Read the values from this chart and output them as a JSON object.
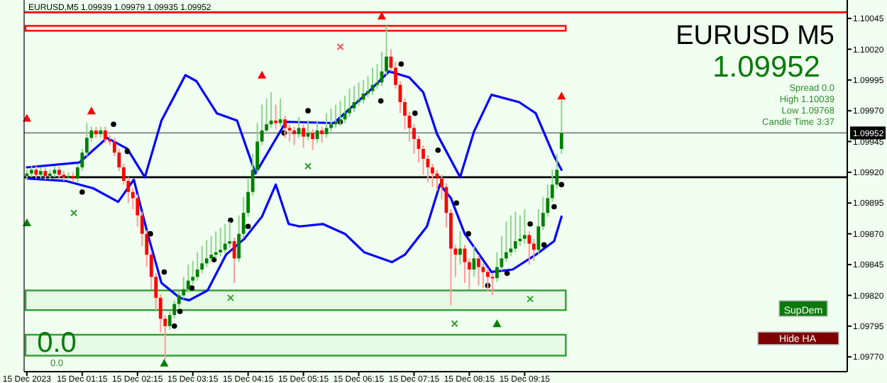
{
  "chart_data": {
    "type": "candlestick",
    "title": "EURUSD,M5  1.09939 1.09979 1.09935 1.09952",
    "annotations": [
      "EURUSD M5",
      "1.09952",
      "Spread 0.0",
      "High 1.10039",
      "Low 1.09768",
      "Candle Time 3:37",
      "0.0",
      "0.0",
      "SupDem",
      "Hide HA"
    ],
    "xlim": [
      "2023-12-15T00:12",
      "2023-12-15T15:05"
    ],
    "ylim": [
      1.09758,
      1.1006
    ],
    "xticks": [
      {
        "value": "2023-12-15T00:15",
        "label": "15 Dec 2023"
      },
      {
        "value": "2023-12-15T01:15",
        "label": "15 Dec 01:15"
      },
      {
        "value": "2023-12-15T02:15",
        "label": "15 Dec 02:15"
      },
      {
        "value": "2023-12-15T03:15",
        "label": "15 Dec 03:15"
      },
      {
        "value": "2023-12-15T04:15",
        "label": "15 Dec 04:15"
      },
      {
        "value": "2023-12-15T05:15",
        "label": "15 Dec 05:15"
      },
      {
        "value": "2023-12-15T06:15",
        "label": "15 Dec 06:15"
      },
      {
        "value": "2023-12-15T07:15",
        "label": "15 Dec 07:15"
      },
      {
        "value": "2023-12-15T08:15",
        "label": "15 Dec 08:15"
      },
      {
        "value": "2023-12-15T09:15",
        "label": "15 Dec 09:15"
      }
    ],
    "yticks": [
      1.10045,
      {
        "value": 1.1002,
        "label": "1.10020"
      },
      1.09995,
      {
        "value": 1.0997,
        "label": "1.09970"
      },
      1.09945,
      {
        "value": 1.0992,
        "label": "1.09920"
      },
      1.09895,
      {
        "value": 1.0987,
        "label": "1.09870"
      },
      1.09845,
      {
        "value": 1.0982,
        "label": "1.09820"
      },
      1.09795,
      {
        "value": 1.0977,
        "label": "1.09770"
      }
    ],
    "x": [
      "2023-12-15T00:15",
      "2023-12-15T00:20",
      "2023-12-15T00:25",
      "2023-12-15T00:30",
      "2023-12-15T00:35",
      "2023-12-15T00:40",
      "2023-12-15T00:45",
      "2023-12-15T00:50",
      "2023-12-15T00:55",
      "2023-12-15T01:00",
      "2023-12-15T01:05",
      "2023-12-15T01:10",
      "2023-12-15T01:15",
      "2023-12-15T01:20",
      "2023-12-15T01:25",
      "2023-12-15T01:30",
      "2023-12-15T01:35",
      "2023-12-15T01:40",
      "2023-12-15T01:45",
      "2023-12-15T01:50",
      "2023-12-15T01:55",
      "2023-12-15T02:00",
      "2023-12-15T02:05",
      "2023-12-15T02:10",
      "2023-12-15T02:15",
      "2023-12-15T02:20",
      "2023-12-15T02:25",
      "2023-12-15T02:30",
      "2023-12-15T02:35",
      "2023-12-15T02:40",
      "2023-12-15T02:45",
      "2023-12-15T02:50",
      "2023-12-15T02:55",
      "2023-12-15T03:00",
      "2023-12-15T03:05",
      "2023-12-15T03:10",
      "2023-12-15T03:15",
      "2023-12-15T03:20",
      "2023-12-15T03:25",
      "2023-12-15T03:30",
      "2023-12-15T03:35",
      "2023-12-15T03:40",
      "2023-12-15T03:45",
      "2023-12-15T03:50",
      "2023-12-15T03:55",
      "2023-12-15T04:00",
      "2023-12-15T04:05",
      "2023-12-15T04:10",
      "2023-12-15T04:15",
      "2023-12-15T04:20",
      "2023-12-15T04:25",
      "2023-12-15T04:30",
      "2023-12-15T04:35",
      "2023-12-15T04:40",
      "2023-12-15T04:45",
      "2023-12-15T04:50",
      "2023-12-15T04:55",
      "2023-12-15T05:00",
      "2023-12-15T05:05",
      "2023-12-15T05:10",
      "2023-12-15T05:15",
      "2023-12-15T05:20",
      "2023-12-15T05:25",
      "2023-12-15T05:30",
      "2023-12-15T05:35",
      "2023-12-15T05:40",
      "2023-12-15T05:45",
      "2023-12-15T05:50",
      "2023-12-15T05:55",
      "2023-12-15T06:00",
      "2023-12-15T06:05",
      "2023-12-15T06:10",
      "2023-12-15T06:15",
      "2023-12-15T06:20",
      "2023-12-15T06:25",
      "2023-12-15T06:30",
      "2023-12-15T06:35",
      "2023-12-15T06:40",
      "2023-12-15T06:45",
      "2023-12-15T06:50",
      "2023-12-15T06:55",
      "2023-12-15T07:00",
      "2023-12-15T07:05",
      "2023-12-15T07:10",
      "2023-12-15T07:15",
      "2023-12-15T07:20",
      "2023-12-15T07:25",
      "2023-12-15T07:30",
      "2023-12-15T07:35",
      "2023-12-15T07:40",
      "2023-12-15T07:45",
      "2023-12-15T07:50",
      "2023-12-15T07:55",
      "2023-12-15T08:00",
      "2023-12-15T08:05",
      "2023-12-15T08:10",
      "2023-12-15T08:15",
      "2023-12-15T08:20",
      "2023-12-15T08:25",
      "2023-12-15T08:30",
      "2023-12-15T08:35",
      "2023-12-15T08:40",
      "2023-12-15T08:45",
      "2023-12-15T08:50",
      "2023-12-15T08:55",
      "2023-12-15T09:00",
      "2023-12-15T09:05",
      "2023-12-15T09:10",
      "2023-12-15T09:15",
      "2023-12-15T09:20",
      "2023-12-15T09:25",
      "2023-12-15T09:30",
      "2023-12-15T09:35",
      "2023-12-15T09:40",
      "2023-12-15T09:45",
      "2023-12-15T09:50",
      "2023-12-15T09:55"
    ],
    "ohlc": [
      [
        1.09917,
        1.09922,
        1.09914,
        1.09919
      ],
      [
        1.09919,
        1.09925,
        1.09916,
        1.09922
      ],
      [
        1.09922,
        1.09925,
        1.09915,
        1.09918
      ],
      [
        1.09918,
        1.09924,
        1.09915,
        1.09921
      ],
      [
        1.09921,
        1.09924,
        1.09914,
        1.09917
      ],
      [
        1.09917,
        1.09922,
        1.09914,
        1.09919
      ],
      [
        1.09919,
        1.09925,
        1.09916,
        1.09922
      ],
      [
        1.09922,
        1.09925,
        1.09915,
        1.09918
      ],
      [
        1.09918,
        1.09921,
        1.09913,
        1.09916
      ],
      [
        1.09916,
        1.0992,
        1.09913,
        1.09917
      ],
      [
        1.09917,
        1.0992,
        1.09912,
        1.09915
      ],
      [
        1.09915,
        1.09927,
        1.09912,
        1.09924
      ],
      [
        1.09924,
        1.09939,
        1.09921,
        1.09936
      ],
      [
        1.09936,
        1.0996,
        1.09933,
        1.09948
      ],
      [
        1.09948,
        1.09957,
        1.09945,
        1.09954
      ],
      [
        1.09954,
        1.09957,
        1.09948,
        1.09951
      ],
      [
        1.09951,
        1.09957,
        1.09948,
        1.09954
      ],
      [
        1.09954,
        1.09957,
        1.09944,
        1.09947
      ],
      [
        1.09947,
        1.0995,
        1.09942,
        1.09945
      ],
      [
        1.09945,
        1.09948,
        1.09933,
        1.09936
      ],
      [
        1.09936,
        1.09939,
        1.09921,
        1.09924
      ],
      [
        1.09924,
        1.09927,
        1.0991,
        1.09913
      ],
      [
        1.09913,
        1.09916,
        1.09895,
        1.09904
      ],
      [
        1.09904,
        1.09907,
        1.0989,
        1.09899
      ],
      [
        1.09899,
        1.09902,
        1.09876,
        1.09885
      ],
      [
        1.09885,
        1.09888,
        1.0986,
        1.0987
      ],
      [
        1.0987,
        1.09873,
        1.09843,
        1.09853
      ],
      [
        1.09853,
        1.09856,
        1.09825,
        1.09835
      ],
      [
        1.09835,
        1.09838,
        1.09808,
        1.09818
      ],
      [
        1.09818,
        1.09821,
        1.0979,
        1.09801
      ],
      [
        1.09801,
        1.09804,
        1.09768,
        1.09795
      ],
      [
        1.09795,
        1.09807,
        1.09792,
        1.09804
      ],
      [
        1.09804,
        1.09816,
        1.09801,
        1.09813
      ],
      [
        1.09813,
        1.09823,
        1.0981,
        1.0982
      ],
      [
        1.0982,
        1.09835,
        1.09817,
        1.09825
      ],
      [
        1.09825,
        1.09845,
        1.09822,
        1.09832
      ],
      [
        1.09832,
        1.09848,
        1.09829,
        1.09835
      ],
      [
        1.09835,
        1.09855,
        1.09832,
        1.09841
      ],
      [
        1.09841,
        1.0986,
        1.09838,
        1.09846
      ],
      [
        1.09846,
        1.09865,
        1.09843,
        1.0985
      ],
      [
        1.0985,
        1.09868,
        1.09847,
        1.09853
      ],
      [
        1.09853,
        1.09872,
        1.0985,
        1.09855
      ],
      [
        1.09855,
        1.09875,
        1.09852,
        1.09857
      ],
      [
        1.09857,
        1.09878,
        1.09854,
        1.09862
      ],
      [
        1.09862,
        1.0988,
        1.09859,
        1.09864
      ],
      [
        1.09864,
        1.09867,
        1.0983,
        1.0985
      ],
      [
        1.0985,
        1.09885,
        1.09847,
        1.0987
      ],
      [
        1.0987,
        1.099,
        1.09867,
        1.09887
      ],
      [
        1.09887,
        1.09915,
        1.09884,
        1.09904
      ],
      [
        1.09904,
        1.09935,
        1.09901,
        1.09922
      ],
      [
        1.09922,
        1.0996,
        1.09919,
        1.09945
      ],
      [
        1.09945,
        1.09975,
        1.09942,
        1.09954
      ],
      [
        1.09954,
        1.0998,
        1.09951,
        1.09959
      ],
      [
        1.09959,
        1.09985,
        1.09956,
        1.09962
      ],
      [
        1.09962,
        1.09975,
        1.09955,
        1.0996
      ],
      [
        1.0996,
        1.0998,
        1.09957,
        1.09963
      ],
      [
        1.09963,
        1.09966,
        1.09948,
        1.09956
      ],
      [
        1.09956,
        1.09959,
        1.09945,
        1.09954
      ],
      [
        1.09954,
        1.09957,
        1.09942,
        1.09951
      ],
      [
        1.09951,
        1.09965,
        1.09948,
        1.09956
      ],
      [
        1.09956,
        1.09959,
        1.0994,
        1.09949
      ],
      [
        1.09949,
        1.09962,
        1.09946,
        1.09952
      ],
      [
        1.09952,
        1.09955,
        1.09938,
        1.09947
      ],
      [
        1.09947,
        1.09962,
        1.09944,
        1.09954
      ],
      [
        1.09954,
        1.09957,
        1.09944,
        1.09951
      ],
      [
        1.09951,
        1.09968,
        1.09948,
        1.09956
      ],
      [
        1.09956,
        1.09972,
        1.09953,
        1.09959
      ],
      [
        1.09959,
        1.09975,
        1.09956,
        1.09961
      ],
      [
        1.09961,
        1.09978,
        1.09958,
        1.09963
      ],
      [
        1.09963,
        1.09982,
        1.0996,
        1.09968
      ],
      [
        1.09968,
        1.09988,
        1.09965,
        1.09972
      ],
      [
        1.09972,
        1.0999,
        1.09969,
        1.09977
      ],
      [
        1.09977,
        1.09993,
        1.09974,
        1.09979
      ],
      [
        1.09979,
        1.09995,
        1.09976,
        1.09984
      ],
      [
        1.09984,
        1.09998,
        1.09981,
        1.09986
      ],
      [
        1.09986,
        1.10005,
        1.09983,
        1.09991
      ],
      [
        1.09991,
        1.10008,
        1.09988,
        1.09993
      ],
      [
        1.09993,
        1.10018,
        1.0999,
        1.10002
      ],
      [
        1.10002,
        1.10039,
        1.09999,
        1.10014
      ],
      [
        1.10014,
        1.1002,
        1.10002,
        1.10005
      ],
      [
        1.10005,
        1.1001,
        1.09988,
        1.09991
      ],
      [
        1.09991,
        1.09994,
        1.09968,
        1.09977
      ],
      [
        1.09977,
        1.0998,
        1.09955,
        1.09966
      ],
      [
        1.09966,
        1.09969,
        1.09945,
        1.09956
      ],
      [
        1.09956,
        1.09959,
        1.09935,
        1.09947
      ],
      [
        1.09947,
        1.0995,
        1.09928,
        1.09939
      ],
      [
        1.09939,
        1.09942,
        1.09918,
        1.09931
      ],
      [
        1.09931,
        1.09934,
        1.09912,
        1.09924
      ],
      [
        1.09924,
        1.09927,
        1.09908,
        1.09919
      ],
      [
        1.09919,
        1.09922,
        1.09905,
        1.09915
      ],
      [
        1.09915,
        1.09918,
        1.09898,
        1.09908
      ],
      [
        1.09908,
        1.09911,
        1.09875,
        1.09887
      ],
      [
        1.09887,
        1.0989,
        1.09812,
        1.09858
      ],
      [
        1.09858,
        1.09861,
        1.09835,
        1.09853
      ],
      [
        1.09853,
        1.09872,
        1.09845,
        1.09858
      ],
      [
        1.09858,
        1.09861,
        1.0983,
        1.09847
      ],
      [
        1.09847,
        1.0985,
        1.09825,
        1.09841
      ],
      [
        1.09841,
        1.0986,
        1.09835,
        1.0985
      ],
      [
        1.0985,
        1.09853,
        1.09828,
        1.09843
      ],
      [
        1.09843,
        1.09846,
        1.09826,
        1.09839
      ],
      [
        1.09839,
        1.09842,
        1.09823,
        1.09835
      ],
      [
        1.09835,
        1.09838,
        1.0982,
        1.09834
      ],
      [
        1.09834,
        1.09855,
        1.09831,
        1.09843
      ],
      [
        1.09843,
        1.09868,
        1.0984,
        1.0985
      ],
      [
        1.0985,
        1.0988,
        1.09847,
        1.09855
      ],
      [
        1.09855,
        1.09885,
        1.09852,
        1.09858
      ],
      [
        1.09858,
        1.09888,
        1.09855,
        1.09864
      ],
      [
        1.09864,
        1.09885,
        1.0986,
        1.09866
      ],
      [
        1.09866,
        1.0989,
        1.09862,
        1.09869
      ],
      [
        1.09869,
        1.09872,
        1.09845,
        1.09862
      ],
      [
        1.09862,
        1.09866,
        1.09848,
        1.09857
      ],
      [
        1.09857,
        1.0989,
        1.09854,
        1.09876
      ],
      [
        1.09876,
        1.099,
        1.09873,
        1.09887
      ],
      [
        1.09887,
        1.0991,
        1.09884,
        1.09899
      ],
      [
        1.09899,
        1.09922,
        1.09896,
        1.0991
      ],
      [
        1.0991,
        1.09935,
        1.09907,
        1.09922
      ],
      [
        1.09939,
        1.09979,
        1.09935,
        1.09952
      ]
    ],
    "series": [
      {
        "type": "line",
        "color": "#0000ff",
        "x": [
          "2023-12-15T00:15",
          "2023-12-15T01:12",
          "2023-12-15T01:42",
          "2023-12-15T02:04",
          "2023-12-15T02:23",
          "2023-12-15T02:41",
          "2023-12-15T03:07",
          "2023-12-15T03:19",
          "2023-12-15T03:41",
          "2023-12-15T04:03",
          "2023-12-15T04:23",
          "2023-12-15T04:56",
          "2023-12-15T05:48",
          "2023-12-15T06:25",
          "2023-12-15T06:48",
          "2023-12-15T07:10",
          "2023-12-15T07:25",
          "2023-12-15T07:40",
          "2023-12-15T08:05",
          "2023-12-15T08:20",
          "2023-12-15T08:39",
          "2023-12-15T09:09",
          "2023-12-15T09:27",
          "2023-12-15T09:47",
          "2023-12-15T09:55"
        ],
        "values": [
          1.09924,
          1.09928,
          1.09948,
          1.09939,
          1.09916,
          1.09962,
          1.09999,
          1.09994,
          1.09968,
          1.09962,
          1.09919,
          1.09961,
          1.0996,
          1.09985,
          1.10002,
          1.09997,
          1.09985,
          1.09951,
          1.09916,
          1.09953,
          1.09983,
          1.09977,
          1.09968,
          1.09933,
          1.09922
        ]
      },
      {
        "type": "line",
        "color": "#0000ff",
        "x": [
          "2023-12-15T00:15",
          "2023-12-15T00:57",
          "2023-12-15T01:27",
          "2023-12-15T01:54",
          "2023-12-15T02:11",
          "2023-12-15T02:26",
          "2023-12-15T02:41",
          "2023-12-15T03:01",
          "2023-12-15T03:11",
          "2023-12-15T03:31",
          "2023-12-15T03:51",
          "2023-12-15T04:11",
          "2023-12-15T04:30",
          "2023-12-15T04:45",
          "2023-12-15T04:59",
          "2023-12-15T05:11",
          "2023-12-15T05:36",
          "2023-12-15T06:00",
          "2023-12-15T06:21",
          "2023-12-15T06:51",
          "2023-12-15T07:05",
          "2023-12-15T07:29",
          "2023-12-15T07:43",
          "2023-12-15T07:55",
          "2023-12-15T08:10",
          "2023-12-15T08:24",
          "2023-12-15T08:39",
          "2023-12-15T09:02",
          "2023-12-15T09:27",
          "2023-12-15T09:47",
          "2023-12-15T09:55"
        ],
        "values": [
          1.09915,
          1.09913,
          1.09907,
          1.09896,
          1.09914,
          1.0987,
          1.0983,
          1.09818,
          1.09816,
          1.09824,
          1.09853,
          1.09866,
          1.09884,
          1.0991,
          1.09878,
          1.09876,
          1.09878,
          1.0987,
          1.09855,
          1.09847,
          1.09853,
          1.09876,
          1.0991,
          1.09899,
          1.0987,
          1.09855,
          1.09839,
          1.09841,
          1.09853,
          1.09864,
          1.09884
        ]
      },
      {
        "type": "scatter",
        "marker": "circle",
        "color": "#000000",
        "x": [
          "2023-12-15T01:15",
          "2023-12-15T01:49",
          "2023-12-15T02:04",
          "2023-12-15T02:29",
          "2023-12-15T02:44",
          "2023-12-15T02:55",
          "2023-12-15T03:01",
          "2023-12-15T03:14",
          "2023-12-15T03:38",
          "2023-12-15T03:56",
          "2023-12-15T04:15",
          "2023-12-15T04:54",
          "2023-12-15T05:20",
          "2023-12-15T05:55",
          "2023-12-15T06:39",
          "2023-12-15T07:01",
          "2023-12-15T07:16",
          "2023-12-15T07:41",
          "2023-12-15T08:01",
          "2023-12-15T08:14",
          "2023-12-15T08:35",
          "2023-12-15T08:56",
          "2023-12-15T09:21",
          "2023-12-15T09:36",
          "2023-12-15T09:47",
          "2023-12-15T09:55"
        ],
        "values": [
          1.09904,
          1.09959,
          1.09937,
          1.0987,
          1.09839,
          1.09795,
          1.09807,
          1.09826,
          1.09849,
          1.09881,
          1.09876,
          1.09952,
          1.0997,
          1.09961,
          1.09978,
          1.10008,
          1.09968,
          1.09938,
          1.09895,
          1.0987,
          1.09828,
          1.09838,
          1.09878,
          1.09861,
          1.09892,
          1.0991
        ]
      },
      {
        "type": "scatter",
        "marker": "triangle",
        "color": "#ff0000",
        "x": [
          "2023-12-15T00:15",
          "2023-12-15T01:25",
          "2023-12-15T04:30",
          "2023-12-15T06:40",
          "2023-12-15T09:55"
        ],
        "values": [
          1.09964,
          1.0997,
          1.09999,
          1.10047,
          1.09982
        ]
      },
      {
        "type": "scatter",
        "marker": "triangle",
        "color": "#008000",
        "x": [
          "2023-12-15T00:15",
          "2023-12-15T02:44",
          "2023-12-15T08:45"
        ],
        "values": [
          1.09879,
          1.09765,
          1.09797
        ]
      },
      {
        "type": "scatter",
        "marker": "cross",
        "color": "#ff5050",
        "x": [
          "2023-12-15T05:55"
        ],
        "values": [
          1.10022
        ]
      },
      {
        "type": "scatter",
        "marker": "cross",
        "color": "#2e9e2e",
        "x": [
          "2023-12-15T01:06",
          "2023-12-15T03:56",
          "2023-12-15T05:20",
          "2023-12-15T07:59",
          "2023-12-15T09:21"
        ],
        "values": [
          1.09887,
          1.09818,
          1.09925,
          1.09797,
          1.09817
        ]
      }
    ],
    "ref_lines": [
      {
        "axis": "y",
        "value": 1.1005,
        "color": "#ff0000",
        "line_style": "solid"
      },
      {
        "axis": "y",
        "value": 1.09952,
        "label": "1.09952",
        "color": "#808080",
        "line_style": "solid"
      },
      {
        "axis": "y",
        "value": 1.09916,
        "color": "#000000",
        "line_style": "solid"
      }
    ],
    "bands": [
      {
        "axis": "y",
        "from": 1.10035,
        "to": 1.10039,
        "color": "#ff0000"
      },
      {
        "axis": "y",
        "from": 1.09771,
        "to": 1.09788,
        "color": "#2e9e2e"
      },
      {
        "axis": "y",
        "from": 1.09808,
        "to": 1.09824,
        "color": "#2e9e2e"
      }
    ]
  }
}
